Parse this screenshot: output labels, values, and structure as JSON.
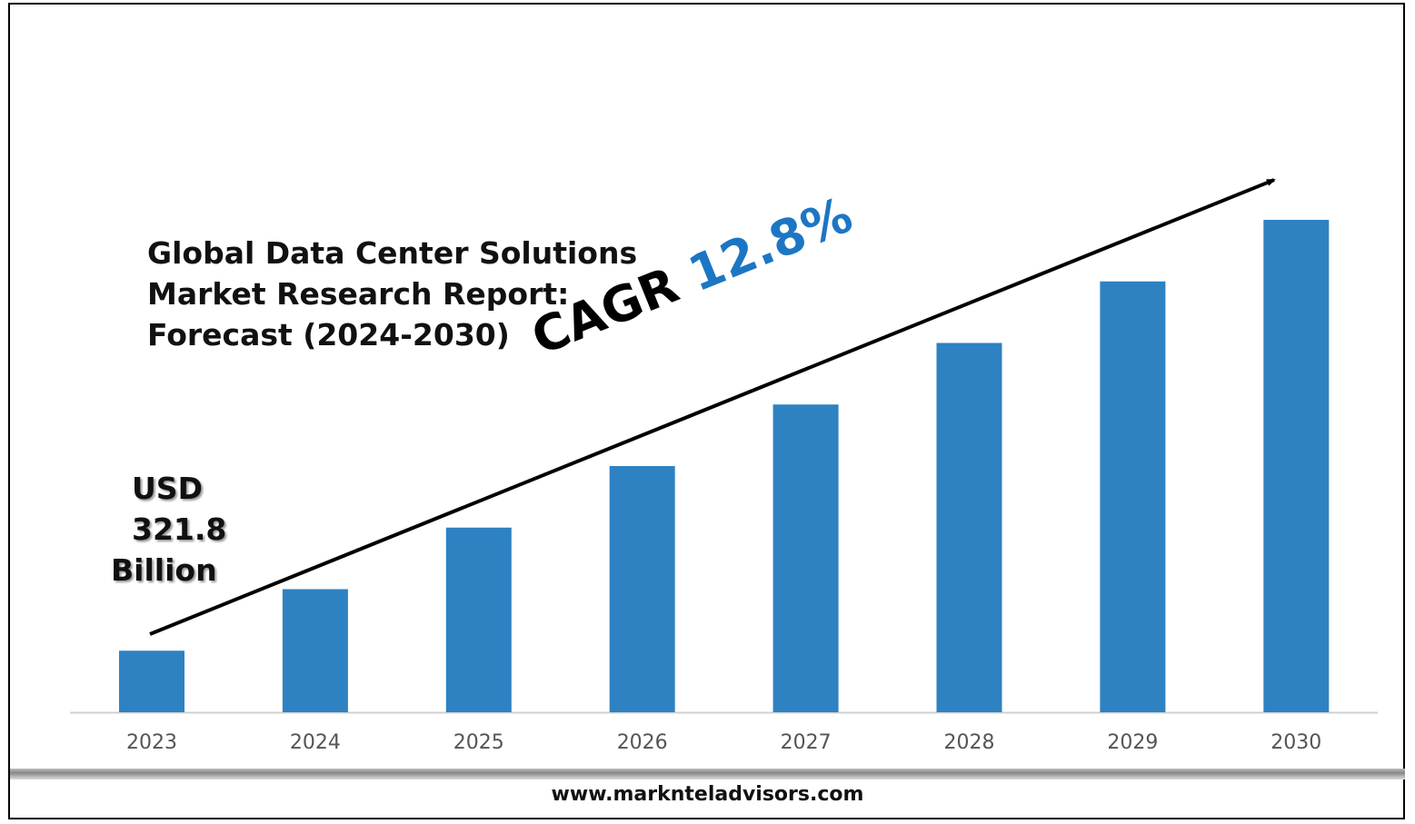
{
  "chart_data": {
    "type": "bar",
    "title": "Global Data Center Solutions Market Research Report: Forecast (2024-2030)",
    "title_lines": [
      "Global Data Center Solutions",
      "Market Research Report:",
      "Forecast (2024-2030)"
    ],
    "categories": [
      "2023",
      "2024",
      "2025",
      "2026",
      "2027",
      "2028",
      "2029",
      "2030"
    ],
    "values": [
      1,
      2,
      3,
      4,
      5,
      6,
      7,
      8
    ],
    "value_note": "relative bar heights (no y-axis printed)",
    "ylim": [
      0,
      8
    ],
    "grid": false,
    "bar_color": "#2e82c2",
    "annotations": {
      "start_value": [
        "USD",
        "321.8",
        "Billion"
      ],
      "cagr_label": "CAGR",
      "cagr_value": "12.8%",
      "cagr_color": "#1c76c4"
    }
  },
  "footer": {
    "website": "www.marknteladvisors.com"
  }
}
